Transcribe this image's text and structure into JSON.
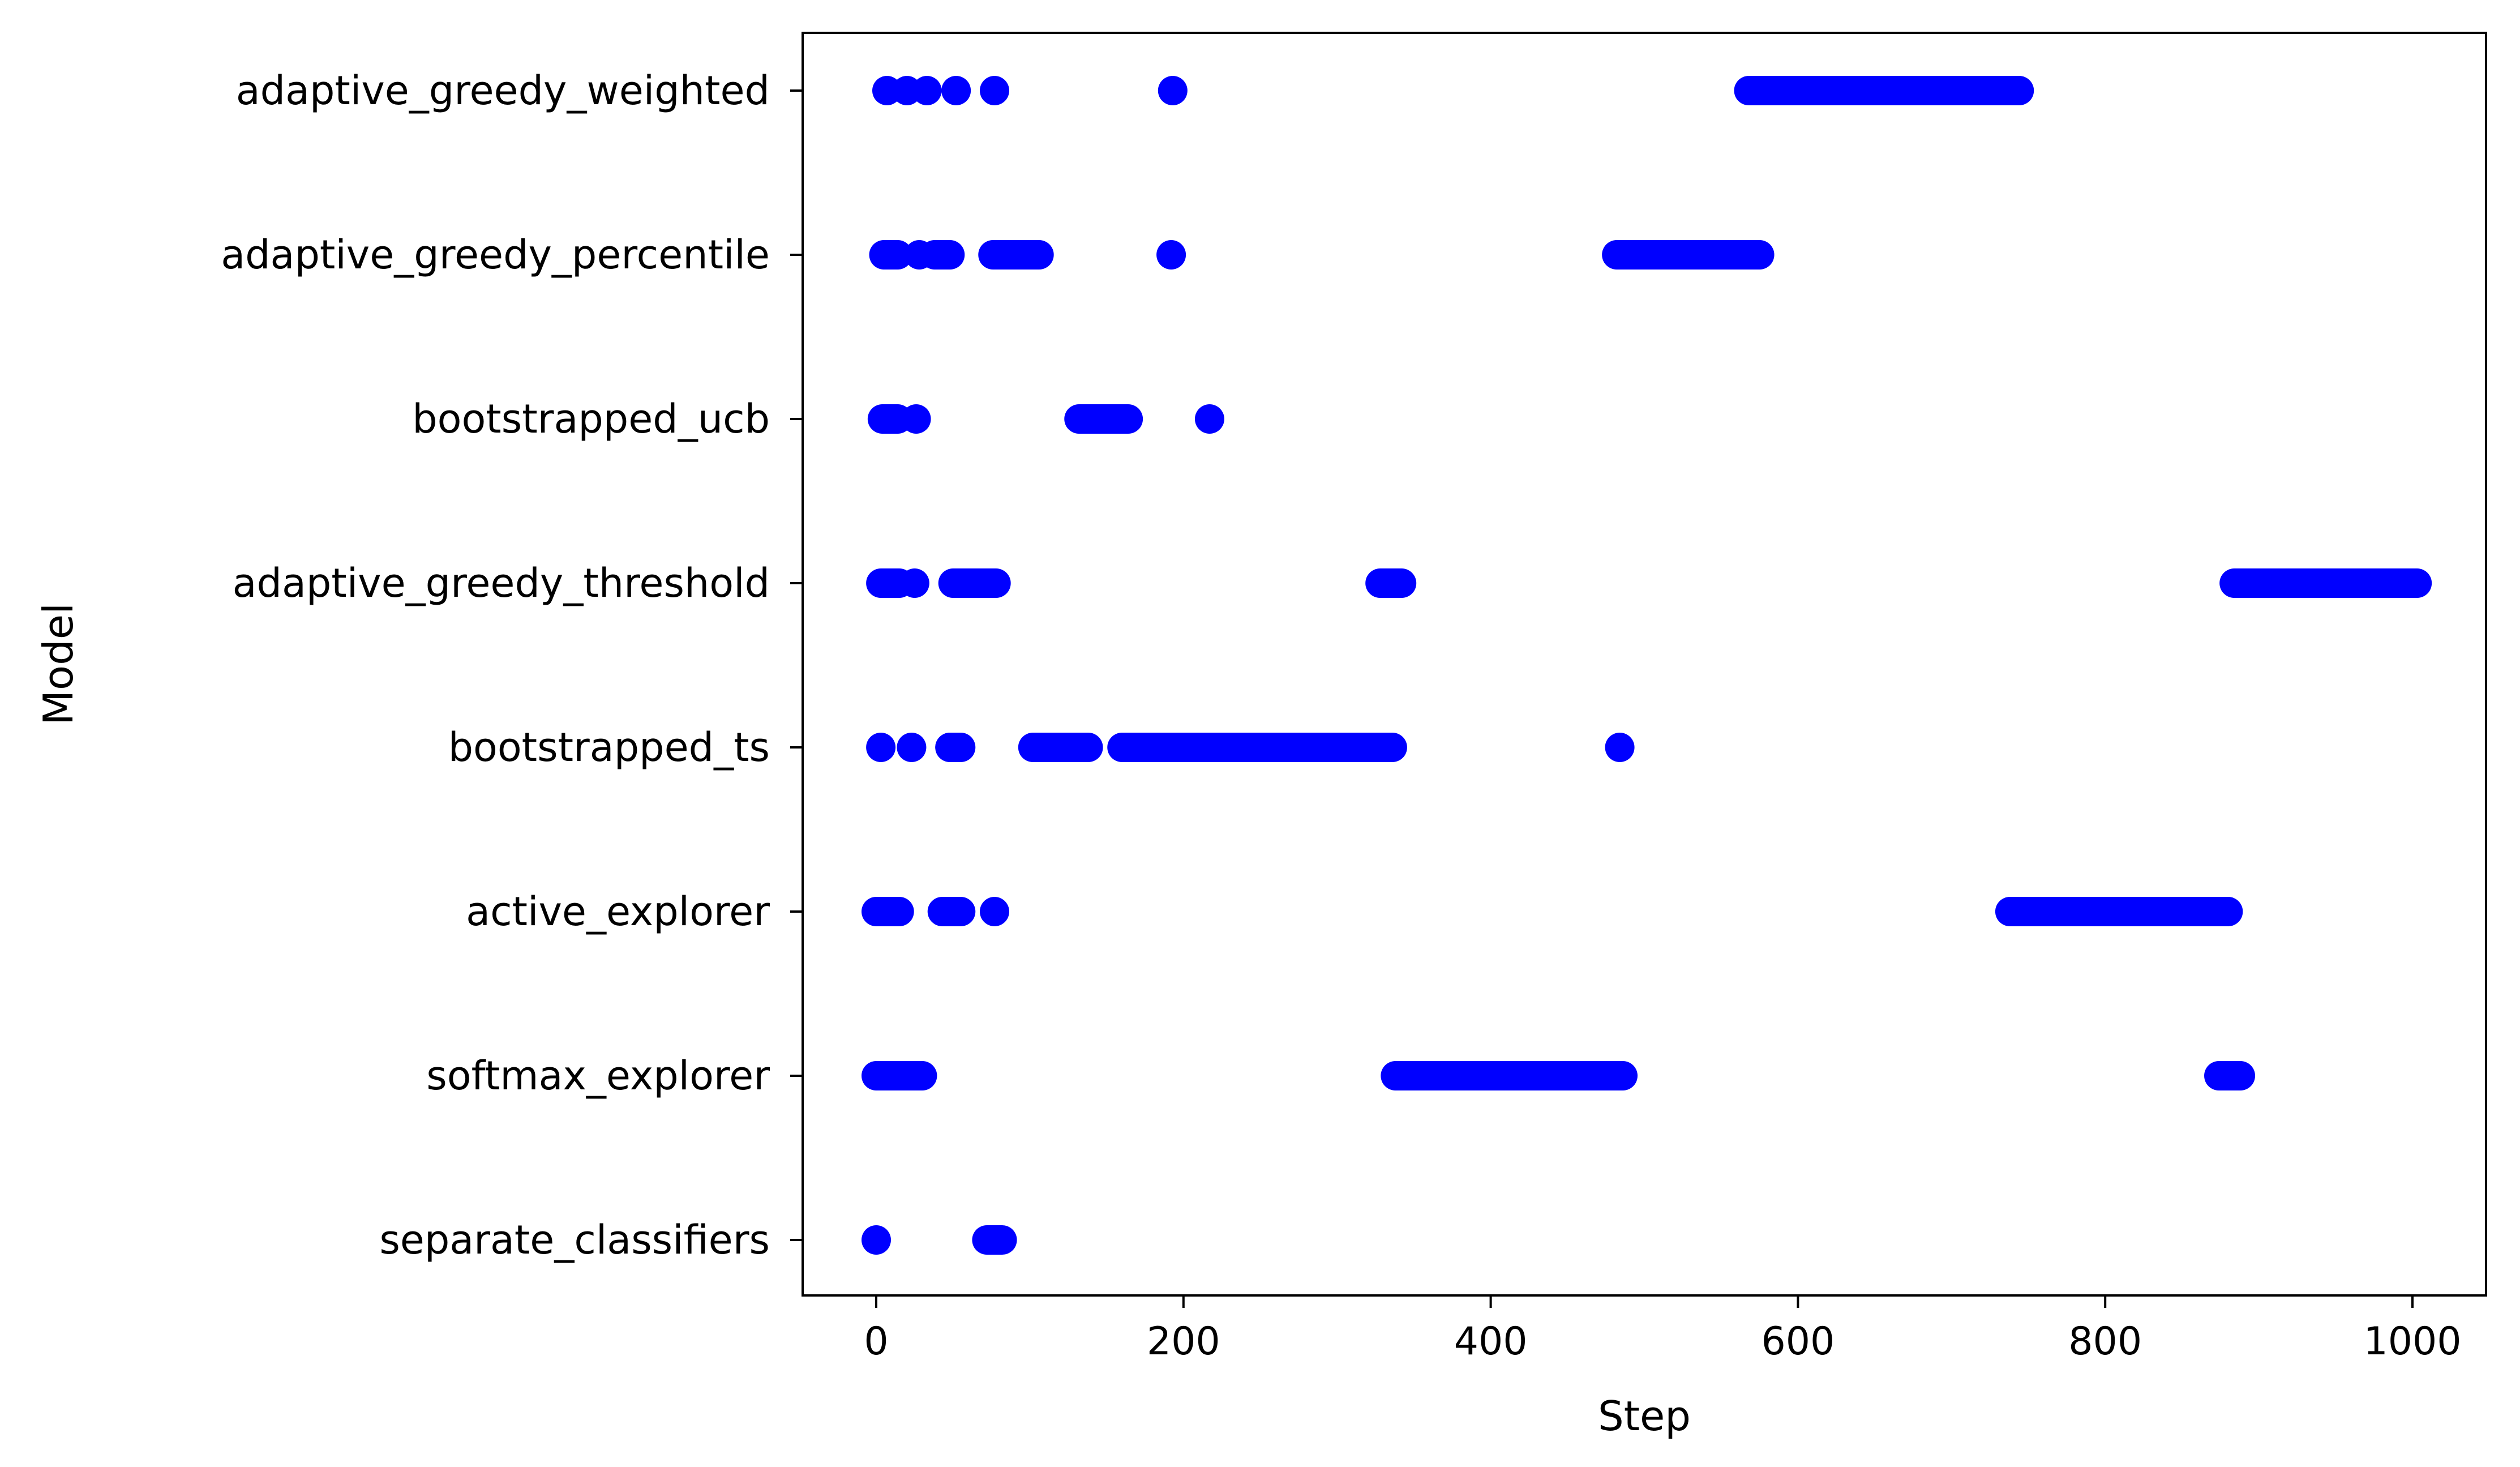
{
  "chart_data": {
    "type": "scatter",
    "title": "",
    "xlabel": "Step",
    "ylabel": "Model",
    "xlim": [
      -50,
      1050
    ],
    "xticks": [
      "0",
      "200",
      "400",
      "600",
      "800",
      "1000"
    ],
    "xtick_values": [
      0,
      200,
      400,
      600,
      800,
      1000
    ],
    "grid": false,
    "legend": "none",
    "marker_color": "#0000ff",
    "categories": [
      "adaptive_greedy_weighted",
      "adaptive_greedy_percentile",
      "bootstrapped_ucb",
      "adaptive_greedy_threshold",
      "bootstrapped_ts",
      "active_explorer",
      "softmax_explorer",
      "separate_classifiers"
    ],
    "points": {
      "adaptive_greedy_weighted": {
        "points": [
          7,
          20,
          33,
          52,
          77,
          193
        ],
        "runs": [
          [
            568,
            744
          ]
        ]
      },
      "adaptive_greedy_percentile": {
        "points": [
          5,
          13,
          28,
          43,
          192
        ],
        "runs": [
          [
            6,
            14
          ],
          [
            38,
            48
          ],
          [
            76,
            106
          ],
          [
            482,
            575
          ]
        ]
      },
      "bootstrapped_ucb": {
        "points": [
          5,
          13,
          26,
          217
        ],
        "runs": [
          [
            4,
            14
          ],
          [
            132,
            164
          ]
        ]
      },
      "adaptive_greedy_threshold": {
        "points": [
          25,
          335
        ],
        "runs": [
          [
            3,
            15
          ],
          [
            50,
            78
          ],
          [
            328,
            342
          ],
          [
            884,
            1003
          ]
        ]
      },
      "bootstrapped_ts": {
        "points": [
          3,
          23,
          48,
          484
        ],
        "runs": [
          [
            48,
            55
          ],
          [
            102,
            138
          ],
          [
            160,
            336
          ]
        ]
      },
      "active_explorer": {
        "points": [
          77
        ],
        "runs": [
          [
            0,
            15
          ],
          [
            43,
            55
          ],
          [
            738,
            880
          ]
        ]
      },
      "softmax_explorer": {
        "points": [],
        "runs": [
          [
            0,
            30
          ],
          [
            338,
            486
          ],
          [
            874,
            888
          ]
        ]
      },
      "separate_classifiers": {
        "points": [
          0
        ],
        "runs": [
          [
            72,
            82
          ]
        ]
      }
    }
  }
}
